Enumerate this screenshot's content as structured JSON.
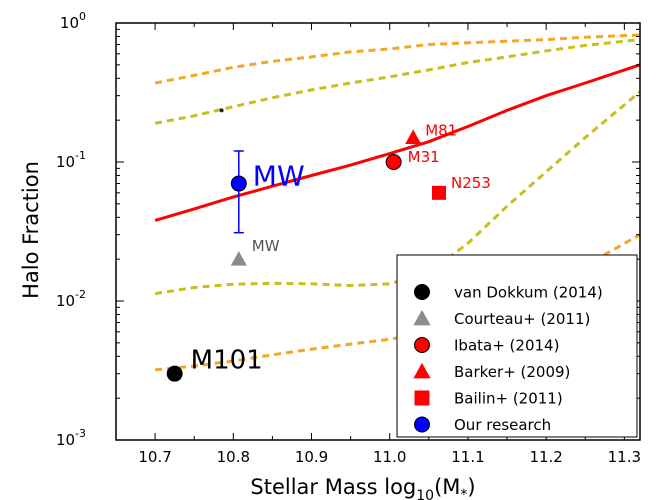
{
  "chart_data": {
    "type": "scatter",
    "xlabel_main": "Stellar Mass log",
    "xlabel_sub": "10",
    "xlabel_tail": "(M",
    "xlabel_star": "*",
    "xlabel_close": ")",
    "ylabel": "Halo Fraction",
    "xlim": [
      10.65,
      11.32
    ],
    "ylim": [
      0.001,
      1
    ],
    "yscale": "log",
    "x_ticks": [
      10.7,
      10.8,
      10.9,
      11.0,
      11.1,
      11.2,
      11.3
    ],
    "x_tick_labels": [
      "10.7",
      "10.8",
      "10.9",
      "11.0",
      "11.1",
      "11.2",
      "11.3"
    ],
    "y_ticks": [
      {
        "value": 0.001,
        "base": "10",
        "exp": "-3"
      },
      {
        "value": 0.01,
        "base": "10",
        "exp": "-2"
      },
      {
        "value": 0.1,
        "base": "10",
        "exp": "-1"
      },
      {
        "value": 1,
        "base": "10",
        "exp": "0"
      }
    ],
    "grid": false,
    "legend_position": "bottom-right",
    "curves": [
      {
        "color": "#f5a623",
        "dash": "7,5",
        "width": 3,
        "points": [
          [
            10.7,
            0.37
          ],
          [
            10.75,
            0.42
          ],
          [
            10.8,
            0.48
          ],
          [
            10.85,
            0.53
          ],
          [
            10.9,
            0.57
          ],
          [
            10.95,
            0.62
          ],
          [
            11.0,
            0.65
          ],
          [
            11.05,
            0.7
          ],
          [
            11.1,
            0.72
          ],
          [
            11.15,
            0.74
          ],
          [
            11.2,
            0.76
          ],
          [
            11.25,
            0.79
          ],
          [
            11.32,
            0.82
          ]
        ]
      },
      {
        "color": "#c8be1e",
        "dash": "7,5",
        "width": 3,
        "points": [
          [
            10.7,
            0.19
          ],
          [
            10.75,
            0.215
          ],
          [
            10.8,
            0.25
          ],
          [
            10.85,
            0.29
          ],
          [
            10.9,
            0.33
          ],
          [
            10.95,
            0.37
          ],
          [
            11.0,
            0.41
          ],
          [
            11.05,
            0.46
          ],
          [
            11.1,
            0.52
          ],
          [
            11.15,
            0.57
          ],
          [
            11.2,
            0.63
          ],
          [
            11.25,
            0.69
          ],
          [
            11.32,
            0.76
          ]
        ]
      },
      {
        "color": "#ff0000",
        "dash": "",
        "width": 3,
        "points": [
          [
            10.7,
            0.038
          ],
          [
            10.75,
            0.046
          ],
          [
            10.8,
            0.056
          ],
          [
            10.85,
            0.067
          ],
          [
            10.9,
            0.08
          ],
          [
            10.95,
            0.095
          ],
          [
            11.0,
            0.115
          ],
          [
            11.05,
            0.14
          ],
          [
            11.1,
            0.18
          ],
          [
            11.15,
            0.235
          ],
          [
            11.2,
            0.3
          ],
          [
            11.25,
            0.37
          ],
          [
            11.32,
            0.5
          ]
        ]
      },
      {
        "color": "#c8be1e",
        "dash": "7,5",
        "width": 3,
        "points": [
          [
            10.7,
            0.0113
          ],
          [
            10.75,
            0.0125
          ],
          [
            10.8,
            0.0132
          ],
          [
            10.85,
            0.0134
          ],
          [
            10.9,
            0.0133
          ],
          [
            10.95,
            0.0129
          ],
          [
            11.0,
            0.0133
          ],
          [
            11.05,
            0.016
          ],
          [
            11.1,
            0.026
          ],
          [
            11.15,
            0.048
          ],
          [
            11.2,
            0.085
          ],
          [
            11.25,
            0.15
          ],
          [
            11.32,
            0.32
          ]
        ]
      },
      {
        "color": "#f5a623",
        "dash": "7,5",
        "width": 3,
        "points": [
          [
            10.7,
            0.0032
          ],
          [
            10.75,
            0.0034
          ],
          [
            10.8,
            0.0037
          ],
          [
            10.85,
            0.0041
          ],
          [
            10.9,
            0.0045
          ],
          [
            10.95,
            0.0049
          ],
          [
            11.0,
            0.0053
          ],
          [
            11.05,
            0.006
          ],
          [
            11.1,
            0.0075
          ],
          [
            11.15,
            0.0095
          ],
          [
            11.2,
            0.013
          ],
          [
            11.25,
            0.018
          ],
          [
            11.32,
            0.03
          ]
        ]
      }
    ],
    "points": [
      {
        "name": "van Dokkum (2014)",
        "x": 10.725,
        "y": 0.003,
        "marker": "circle",
        "color": "#000000",
        "label": "M101",
        "label_color": "#000000",
        "label_size": 26
      },
      {
        "name": "Courteau+ (2011)",
        "x": 10.807,
        "y": 0.02,
        "marker": "triangle",
        "color": "#8c8c8c",
        "label": "MW",
        "label_color": "#555555",
        "label_size": 15
      },
      {
        "name": "Ibata+ (2014)",
        "x": 11.005,
        "y": 0.1,
        "marker": "circle",
        "color": "#ff0000",
        "label": "M31",
        "label_color": "#ff0000",
        "label_size": 15
      },
      {
        "name": "Barker+ (2009)",
        "x": 11.03,
        "y": 0.15,
        "marker": "triangle",
        "color": "#ff0000",
        "label": "M81",
        "label_color": "#ff0000",
        "label_size": 15
      },
      {
        "name": "Bailin+ (2011)",
        "x": 11.063,
        "y": 0.06,
        "marker": "square",
        "color": "#ff0000",
        "label": "N253",
        "label_color": "#ff0000",
        "label_size": 15
      },
      {
        "name": "Our research",
        "x": 10.807,
        "y": 0.07,
        "marker": "circle",
        "color": "#0000ff",
        "label": "MW",
        "label_color": "#0000ff",
        "label_size": 28,
        "yerr": [
          0.031,
          0.12
        ]
      }
    ],
    "stray_dot": {
      "x": 10.785,
      "y": 0.235
    },
    "legend": [
      {
        "label": "van Dokkum (2014)",
        "marker": "circle",
        "color": "#000000"
      },
      {
        "label": "Courteau+ (2011)",
        "marker": "triangle",
        "color": "#8c8c8c"
      },
      {
        "label": "Ibata+ (2014)",
        "marker": "circle",
        "color": "#ff0000"
      },
      {
        "label": "Barker+ (2009)",
        "marker": "triangle",
        "color": "#ff0000"
      },
      {
        "label": "Bailin+ (2011)",
        "marker": "square",
        "color": "#ff0000"
      },
      {
        "label": "Our research",
        "marker": "circle",
        "color": "#0000ff"
      }
    ]
  }
}
